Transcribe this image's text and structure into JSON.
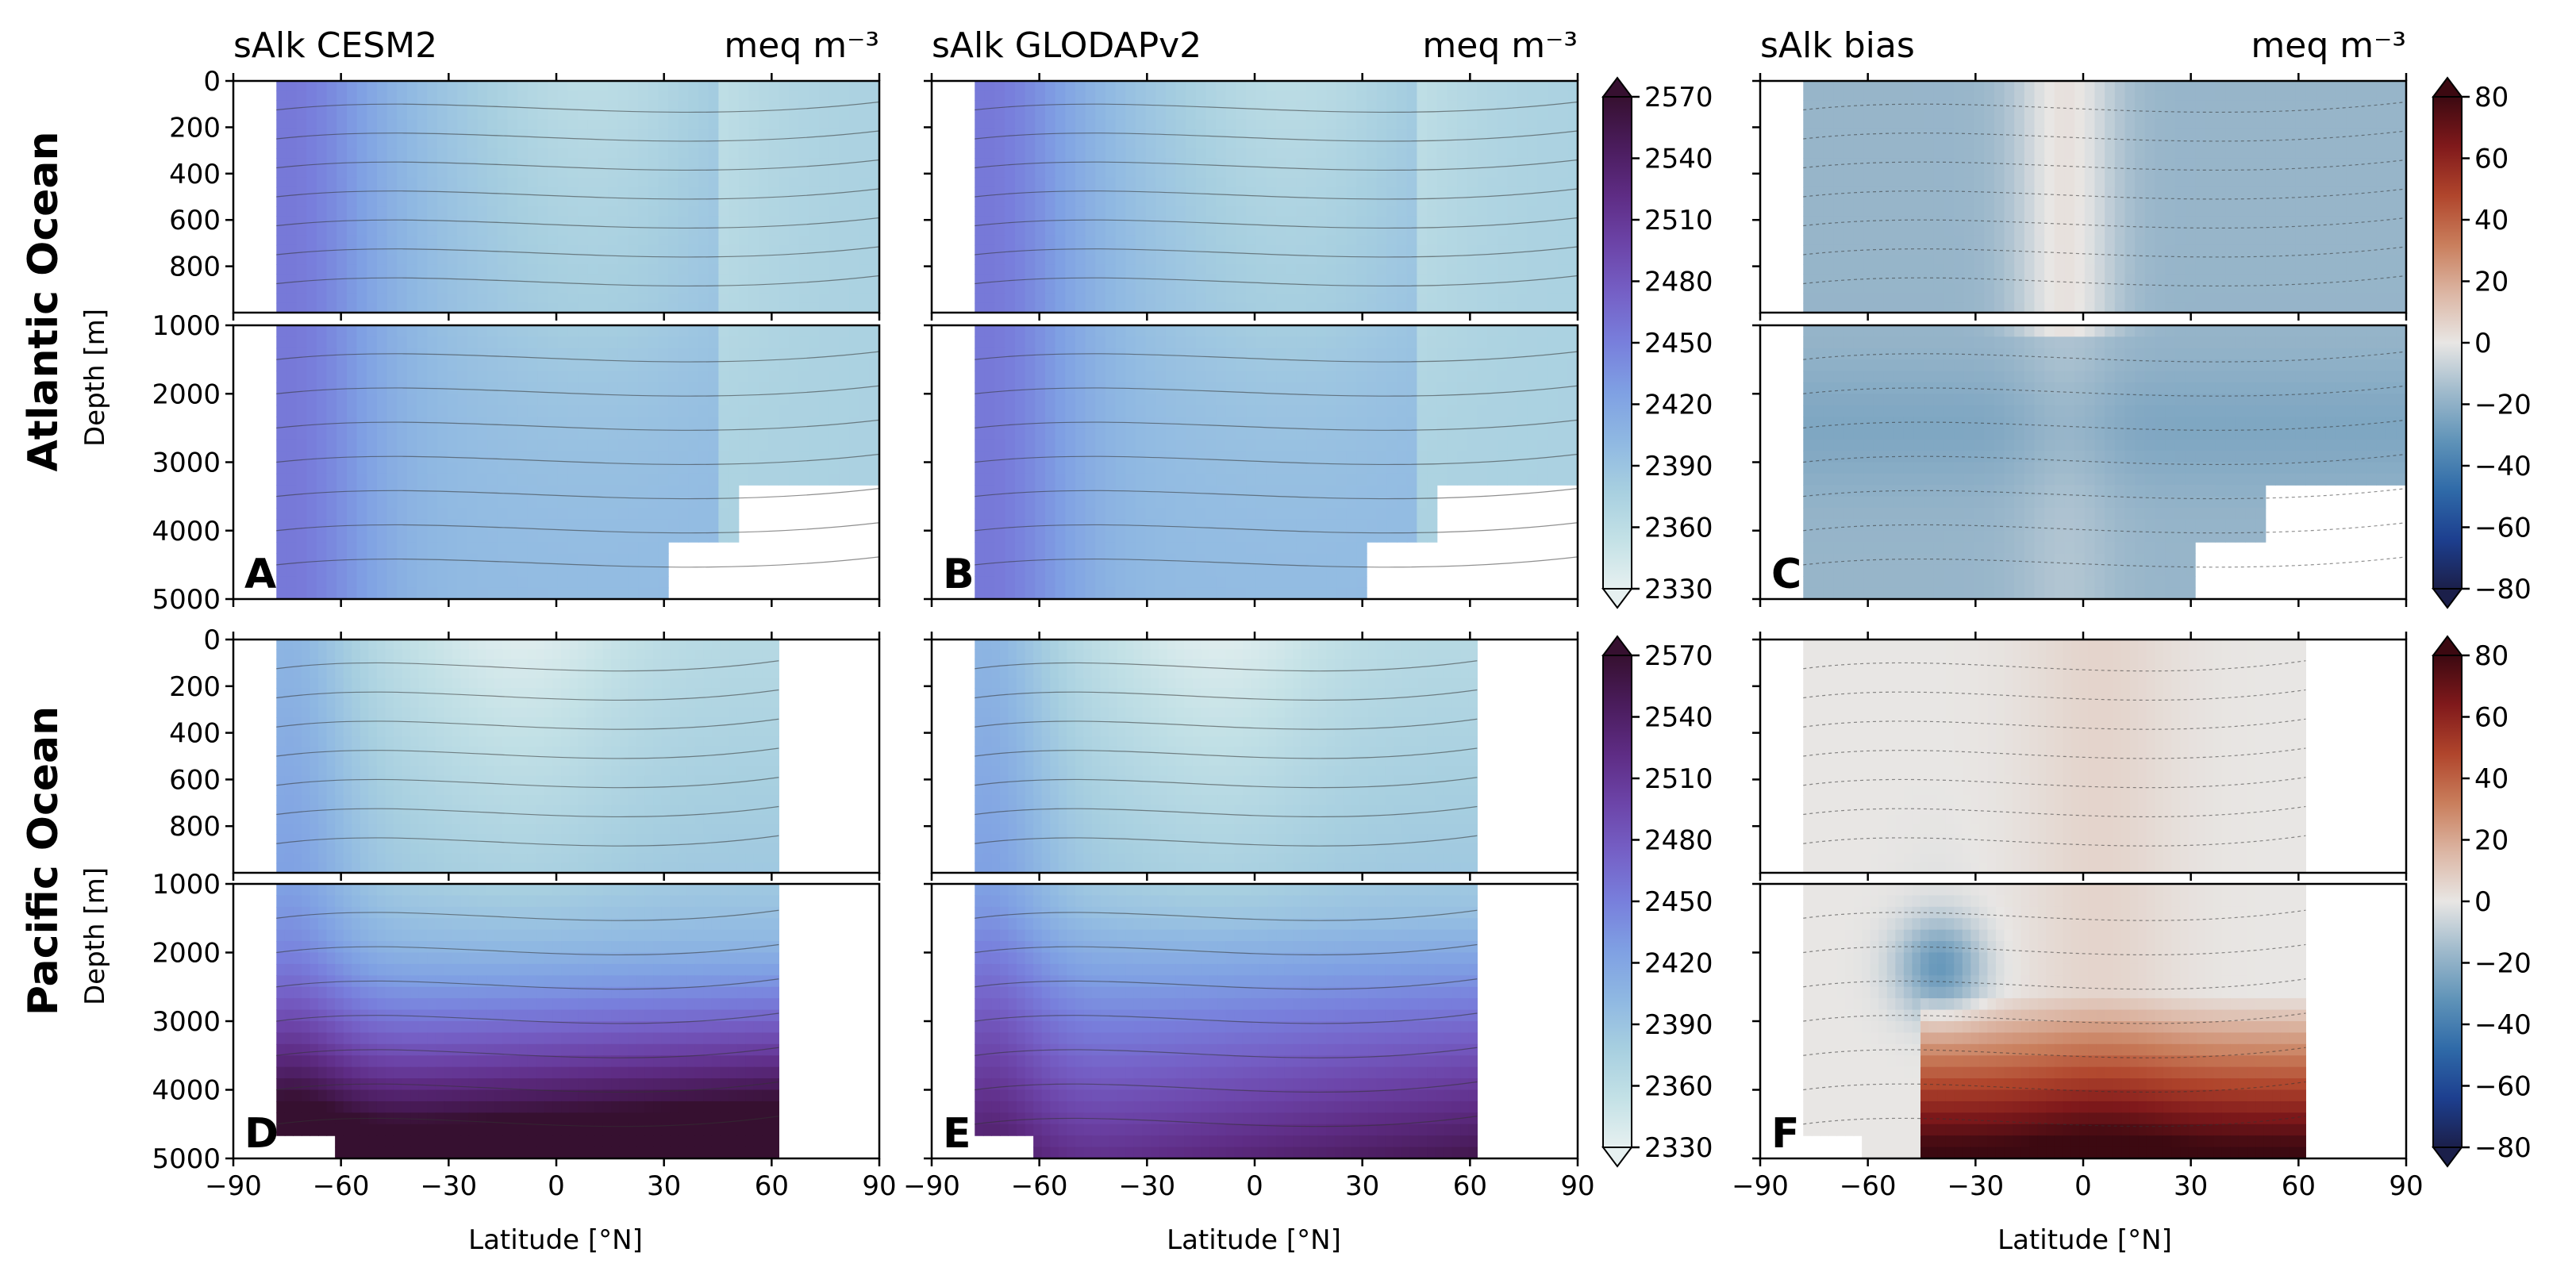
{
  "figure": {
    "row_labels": [
      "Atlantic Ocean",
      "Pacific Ocean"
    ],
    "ylabel": "Depth [m]",
    "xlabel": "Latitude [$^\\circ$N]",
    "xlabel_display": "Latitude [°N]"
  },
  "chart_data": [
    {
      "type": "heatmap",
      "panel": "A",
      "ocean": "Atlantic Ocean",
      "title": "sAlk CESM2",
      "units": "meq m⁻³",
      "x": {
        "label": "Latitude [°N]",
        "lim": [
          -90,
          90
        ],
        "ticks": [
          -90,
          -60,
          -30,
          0,
          30,
          60,
          90
        ]
      },
      "y_upper": {
        "label": "Depth [m]",
        "lim": [
          0,
          1000
        ],
        "ticks": [
          0,
          200,
          400,
          600,
          800
        ],
        "inverted": true
      },
      "y_lower": {
        "lim": [
          1000,
          5000
        ],
        "ticks": [
          1000,
          2000,
          3000,
          4000,
          5000
        ],
        "inverted": true
      },
      "colorbar": {
        "range": [
          2330,
          2570
        ],
        "ticks": [
          2330,
          2360,
          2390,
          2420,
          2450,
          2480,
          2510,
          2540,
          2570
        ],
        "cmap": "dense"
      },
      "data_extent_lat": [
        -78,
        90
      ],
      "description_values": {
        "deep_south": 2450,
        "surface_mid": 2360,
        "deep_north": 2400
      }
    },
    {
      "type": "heatmap",
      "panel": "B",
      "ocean": "Atlantic Ocean",
      "title": "sAlk GLODAPv2",
      "units": "meq m⁻³",
      "x": {
        "lim": [
          -90,
          90
        ],
        "ticks": [
          -90,
          -60,
          -30,
          0,
          30,
          60,
          90
        ]
      },
      "y_upper": {
        "lim": [
          0,
          1000
        ],
        "inverted": true
      },
      "y_lower": {
        "lim": [
          1000,
          5000
        ],
        "inverted": true
      },
      "colorbar": {
        "range": [
          2330,
          2570
        ],
        "ticks": [
          2330,
          2360,
          2390,
          2420,
          2450,
          2480,
          2510,
          2540,
          2570
        ],
        "cmap": "dense"
      },
      "data_extent_lat": [
        -78,
        90
      ]
    },
    {
      "type": "heatmap",
      "panel": "C",
      "ocean": "Atlantic Ocean",
      "title": "sAlk bias",
      "units": "meq m⁻³",
      "x": {
        "lim": [
          -90,
          90
        ],
        "ticks": [
          -90,
          -60,
          -30,
          0,
          30,
          60,
          90
        ]
      },
      "y_upper": {
        "lim": [
          0,
          1000
        ],
        "inverted": true
      },
      "y_lower": {
        "lim": [
          1000,
          5000
        ],
        "inverted": true
      },
      "colorbar": {
        "range": [
          -80,
          80
        ],
        "ticks": [
          -80,
          -60,
          -40,
          -20,
          0,
          20,
          40,
          60,
          80
        ],
        "cmap": "balance"
      },
      "data_extent_lat": [
        -78,
        90
      ]
    },
    {
      "type": "heatmap",
      "panel": "D",
      "ocean": "Pacific Ocean",
      "title": "",
      "units": "",
      "x": {
        "label": "Latitude [°N]",
        "lim": [
          -90,
          90
        ],
        "ticks": [
          -90,
          -60,
          -30,
          0,
          30,
          60,
          90
        ]
      },
      "y_upper": {
        "label": "Depth [m]",
        "lim": [
          0,
          1000
        ],
        "ticks": [
          0,
          200,
          400,
          600,
          800
        ],
        "inverted": true
      },
      "y_lower": {
        "lim": [
          1000,
          5000
        ],
        "ticks": [
          1000,
          2000,
          3000,
          4000,
          5000
        ],
        "inverted": true
      },
      "colorbar": {
        "range": [
          2330,
          2570
        ],
        "ticks": [
          2330,
          2360,
          2390,
          2420,
          2450,
          2480,
          2510,
          2540,
          2570
        ],
        "cmap": "dense"
      },
      "data_extent_lat": [
        -78,
        62
      ]
    },
    {
      "type": "heatmap",
      "panel": "E",
      "ocean": "Pacific Ocean",
      "title": "",
      "units": "",
      "x": {
        "label": "Latitude [°N]",
        "lim": [
          -90,
          90
        ],
        "ticks": [
          -90,
          -60,
          -30,
          0,
          30,
          60,
          90
        ]
      },
      "y_upper": {
        "lim": [
          0,
          1000
        ],
        "inverted": true
      },
      "y_lower": {
        "lim": [
          1000,
          5000
        ],
        "inverted": true
      },
      "colorbar": {
        "range": [
          2330,
          2570
        ],
        "ticks": [
          2330,
          2360,
          2390,
          2420,
          2450,
          2480,
          2510,
          2540,
          2570
        ],
        "cmap": "dense"
      },
      "data_extent_lat": [
        -78,
        62
      ]
    },
    {
      "type": "heatmap",
      "panel": "F",
      "ocean": "Pacific Ocean",
      "title": "",
      "units": "",
      "x": {
        "label": "Latitude [°N]",
        "lim": [
          -90,
          90
        ],
        "ticks": [
          -90,
          -60,
          -30,
          0,
          30,
          60,
          90
        ]
      },
      "y_upper": {
        "lim": [
          0,
          1000
        ],
        "inverted": true
      },
      "y_lower": {
        "lim": [
          1000,
          5000
        ],
        "inverted": true
      },
      "colorbar": {
        "range": [
          -80,
          80
        ],
        "ticks": [
          -80,
          -60,
          -40,
          -20,
          0,
          20,
          40,
          60,
          80
        ],
        "cmap": "balance"
      },
      "data_extent_lat": [
        -78,
        62
      ]
    }
  ],
  "colors": {
    "dense": [
      "#e6f0f0",
      "#c3e1e6",
      "#a7cfe0",
      "#8fb8e2",
      "#7fa0e3",
      "#787fdc",
      "#7560c6",
      "#6c44a8",
      "#5e2c84",
      "#4a1c5c",
      "#361030"
    ],
    "balance": [
      "#1b1f4a",
      "#1d3f8f",
      "#2f6aa8",
      "#5f93b8",
      "#9fbacc",
      "#e8e6e4",
      "#dcb6a4",
      "#c97e5c",
      "#b0452c",
      "#80191b",
      "#3c0911"
    ]
  }
}
